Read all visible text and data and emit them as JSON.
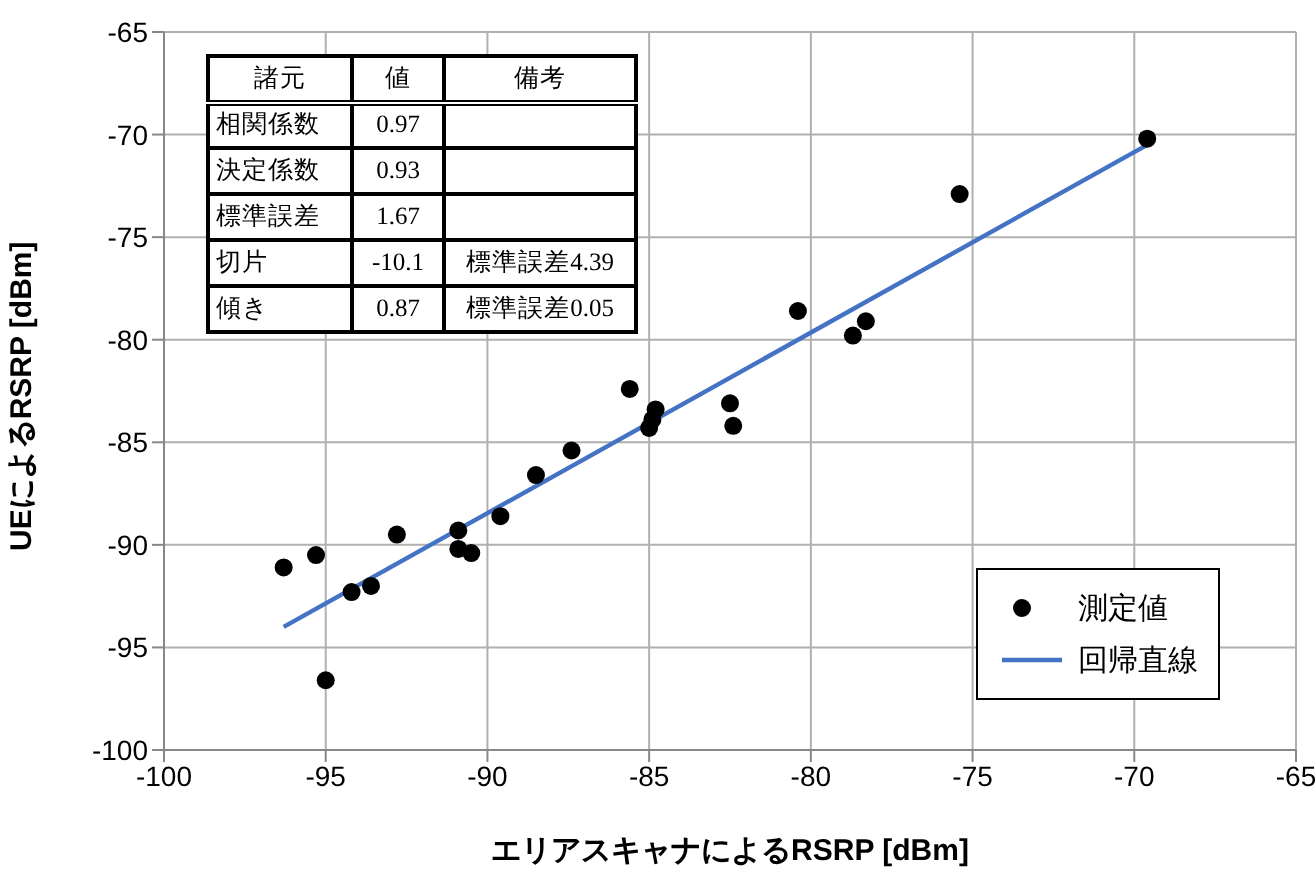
{
  "chart_data": {
    "type": "scatter",
    "xlabel": "エリアスキャナによるRSRP [dBm]",
    "ylabel": "UEによるRSRP [dBm]",
    "xlim": [
      -100,
      -65
    ],
    "xticks": [
      -100,
      -95,
      -90,
      -85,
      -80,
      -75,
      -70,
      -65
    ],
    "ylim": [
      -100,
      -65
    ],
    "yticks": [
      -100,
      -95,
      -90,
      -85,
      -80,
      -75,
      -70,
      -65
    ],
    "grid": true,
    "legend": "bottom right",
    "series": [
      {
        "name": "測定値",
        "marker": "circle",
        "color": "#000000",
        "x": [
          -96.3,
          -95.3,
          -95.0,
          -94.2,
          -93.6,
          -92.8,
          -90.9,
          -90.9,
          -90.5,
          -89.6,
          -88.5,
          -87.4,
          -85.6,
          -85.0,
          -84.9,
          -84.8,
          -82.5,
          -82.4,
          -80.4,
          -78.7,
          -78.3,
          -75.4,
          -69.6
        ],
        "values": [
          -91.1,
          -90.5,
          -96.6,
          -92.3,
          -92.0,
          -89.5,
          -89.3,
          -90.2,
          -90.4,
          -88.6,
          -86.6,
          -85.4,
          -82.4,
          -84.3,
          -83.9,
          -83.4,
          -83.1,
          -84.2,
          -78.6,
          -79.8,
          -79.1,
          -72.9,
          -70.2
        ]
      },
      {
        "name": "回帰直線",
        "type": "line",
        "color": "#4472c4",
        "x": [
          -96.3,
          -69.6
        ],
        "values": [
          -94.0,
          -70.5
        ]
      }
    ],
    "annotations": [
      "諸元\t値\t備考",
      "相関係数\t0.97",
      "決定係数\t0.93",
      "標準誤差\t1.67",
      "切片\t-10.1\t標準誤差4.39",
      "傾き\t0.87\t標準誤差0.05"
    ]
  }
}
